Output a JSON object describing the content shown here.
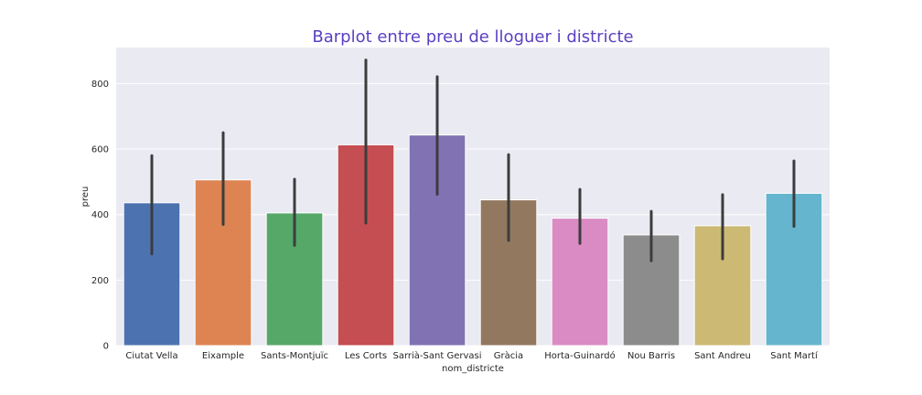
{
  "chart_data": {
    "type": "bar",
    "title": "Barplot entre preu de lloguer i districte",
    "title_color": "#5b3fc4",
    "xlabel": "nom_districte",
    "ylabel": "preu",
    "ylim": [
      0,
      910
    ],
    "yticks": [
      0,
      200,
      400,
      600,
      800
    ],
    "grid": true,
    "categories": [
      "Ciutat Vella",
      "Eixample",
      "Sants-Montjuïc",
      "Les Corts",
      "Sarrià-Sant Gervasi",
      "Gràcia",
      "Horta-Guinardó",
      "Nou Barris",
      "Sant Andreu",
      "Sant Martí"
    ],
    "values": [
      436,
      506,
      405,
      613,
      643,
      445,
      389,
      338,
      366,
      465
    ],
    "error_low": [
      280,
      370,
      306,
      374,
      462,
      321,
      312,
      259,
      265,
      364
    ],
    "error_high": [
      580,
      650,
      508,
      872,
      821,
      583,
      477,
      410,
      461,
      564
    ],
    "colors": [
      "#4c72b0",
      "#dd8452",
      "#55a868",
      "#c44e52",
      "#8172b3",
      "#937860",
      "#da8bc3",
      "#8c8c8c",
      "#ccb974",
      "#64b5cd"
    ]
  }
}
